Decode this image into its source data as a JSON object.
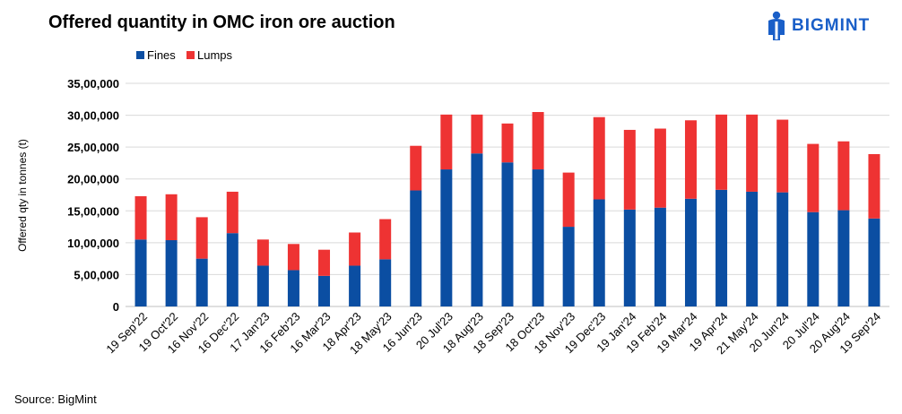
{
  "header": {
    "title": "Offered quantity in OMC iron ore auction",
    "logo_text": "BIGMINT",
    "logo_icon": "bigmint-figure-icon"
  },
  "footer": {
    "source": "Source: BigMint"
  },
  "colors": {
    "fines": "#0b4ea2",
    "lumps": "#ee3333",
    "grid": "#d9d9d9"
  },
  "chart_data": {
    "type": "bar",
    "stacked": true,
    "title": "Offered quantity in OMC iron ore auction",
    "xlabel": "",
    "ylabel": "Offered qty in tonnes (t)",
    "ylim": [
      0,
      3500000
    ],
    "yticks": [
      0,
      500000,
      1000000,
      1500000,
      2000000,
      2500000,
      3000000,
      3500000
    ],
    "ytick_labels": [
      "0",
      "5,00,000",
      "10,00,000",
      "15,00,000",
      "20,00,000",
      "25,00,000",
      "30,00,000",
      "35,00,000"
    ],
    "legend_position": "top-left",
    "grid": true,
    "categories": [
      "19 Sep'22",
      "19 Oct'22",
      "16 Nov'22",
      "16 Dec'22",
      "17 Jan'23",
      "16 Feb'23",
      "16 Mar'23",
      "18 Apr'23",
      "18 May'23",
      "16 Jun'23",
      "20 Jul'23",
      "18 Aug'23",
      "18 Sep'23",
      "18 Oct'23",
      "18 Nov'23",
      "19 Dec'23",
      "19 Jan'24",
      "19 Feb'24",
      "19 Mar'24",
      "19 Apr'24",
      "21 May'24",
      "20 Jun'24",
      "20 Jul'24",
      "20 Aug'24",
      "19 Sep'24"
    ],
    "series": [
      {
        "name": "Fines",
        "values": [
          1050000,
          1040000,
          750000,
          1150000,
          640000,
          570000,
          480000,
          640000,
          740000,
          1820000,
          2150000,
          2400000,
          2260000,
          2150000,
          1250000,
          1680000,
          1520000,
          1550000,
          1690000,
          1830000,
          1800000,
          1790000,
          1480000,
          1510000,
          1380000
        ]
      },
      {
        "name": "Lumps",
        "values": [
          680000,
          720000,
          650000,
          650000,
          410000,
          410000,
          410000,
          520000,
          630000,
          700000,
          860000,
          610000,
          610000,
          900000,
          850000,
          1290000,
          1250000,
          1240000,
          1230000,
          1180000,
          1210000,
          1140000,
          1070000,
          1080000,
          1010000
        ]
      }
    ]
  }
}
